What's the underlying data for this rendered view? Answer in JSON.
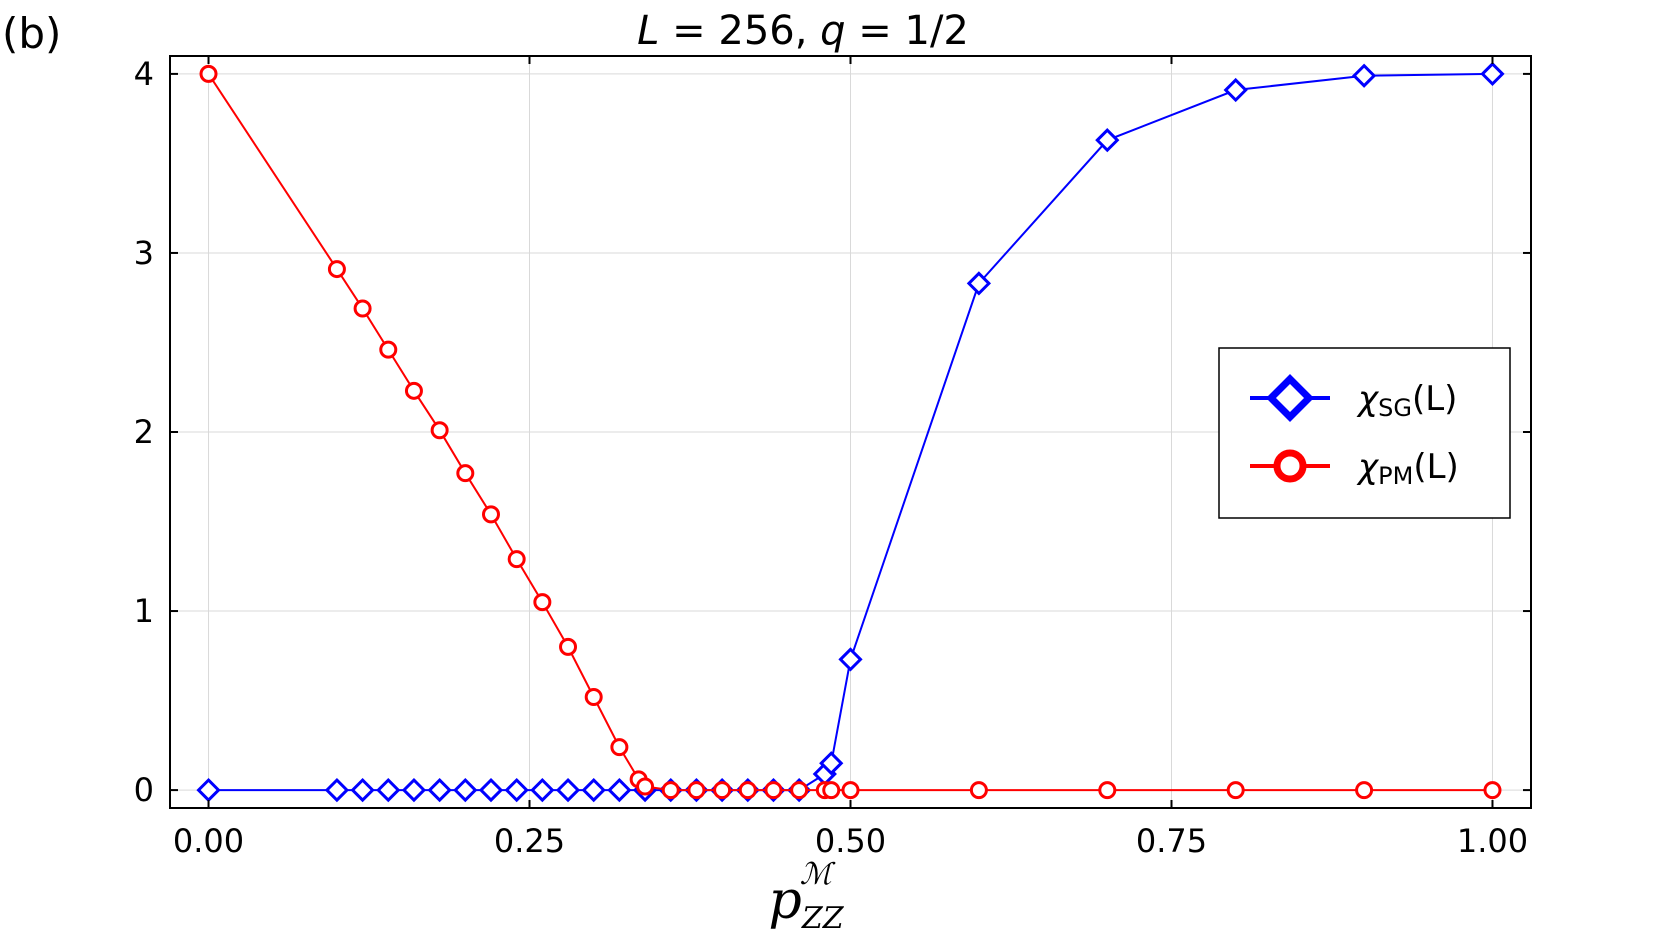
{
  "panel_label": "(b)",
  "chart_data": {
    "type": "line",
    "title": "L = 256, q = 1/2",
    "title_parts": {
      "lhs1": "L",
      "eq1": " = 256, ",
      "lhs2": "q",
      "eq2": " = 1/2"
    },
    "xlabel": "p",
    "xlabel_sup": "ℳ",
    "xlabel_sub": "ZZ",
    "ylabel": "",
    "xlim": [
      -0.03,
      1.03
    ],
    "ylim": [
      -0.1,
      4.1
    ],
    "xticks": [
      0.0,
      0.25,
      0.5,
      0.75,
      1.0
    ],
    "xtick_labels": [
      "0.00",
      "0.25",
      "0.50",
      "0.75",
      "1.00"
    ],
    "yticks": [
      0,
      1,
      2,
      3,
      4
    ],
    "ytick_labels": [
      "0",
      "1",
      "2",
      "3",
      "4"
    ],
    "grid": true,
    "legend_position": "center-right",
    "series": [
      {
        "name": "χSG(L)",
        "legend": {
          "chi": "χ",
          "sub": "SG",
          "arg": "(L)"
        },
        "color": "#0000ff",
        "marker": "diamond",
        "x": [
          0.0,
          0.1,
          0.12,
          0.14,
          0.16,
          0.18,
          0.2,
          0.22,
          0.24,
          0.26,
          0.28,
          0.3,
          0.32,
          0.34,
          0.36,
          0.38,
          0.4,
          0.42,
          0.44,
          0.46,
          0.48,
          0.485,
          0.5,
          0.6,
          0.7,
          0.8,
          0.9,
          1.0
        ],
        "y": [
          0,
          0,
          0,
          0,
          0,
          0,
          0,
          0,
          0,
          0,
          0,
          0,
          0,
          0,
          0,
          0,
          0,
          0,
          0,
          0,
          0.09,
          0.15,
          0.73,
          2.83,
          3.63,
          3.91,
          3.99,
          4.0
        ]
      },
      {
        "name": "χPM(L)",
        "legend": {
          "chi": "χ",
          "sub": "PM",
          "arg": "(L)"
        },
        "color": "#ff0000",
        "marker": "circle",
        "x": [
          0.0,
          0.1,
          0.12,
          0.14,
          0.16,
          0.18,
          0.2,
          0.22,
          0.24,
          0.26,
          0.28,
          0.3,
          0.32,
          0.335,
          0.34,
          0.36,
          0.38,
          0.4,
          0.42,
          0.44,
          0.46,
          0.48,
          0.485,
          0.5,
          0.6,
          0.7,
          0.8,
          0.9,
          1.0
        ],
        "y": [
          4.0,
          2.91,
          2.69,
          2.46,
          2.23,
          2.01,
          1.77,
          1.54,
          1.29,
          1.05,
          0.8,
          0.52,
          0.24,
          0.06,
          0.02,
          0,
          0,
          0,
          0,
          0,
          0,
          0,
          0,
          0,
          0,
          0,
          0,
          0,
          0
        ]
      }
    ]
  }
}
